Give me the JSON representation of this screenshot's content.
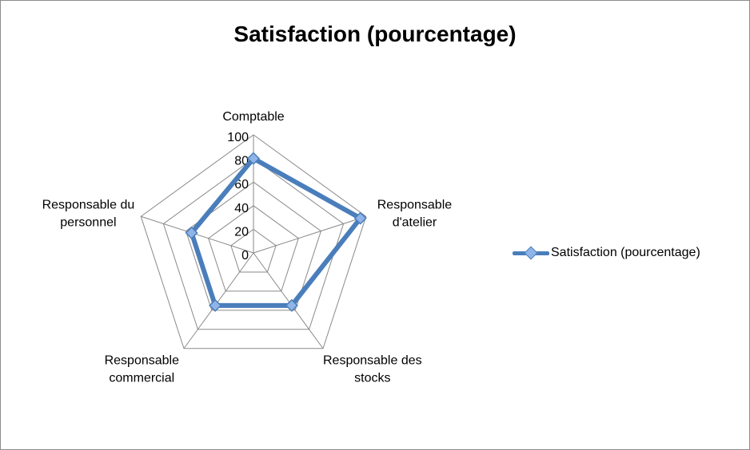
{
  "chart_data": {
    "type": "radar",
    "title": "Satisfaction (pourcentage)",
    "categories": [
      [
        "Comptable"
      ],
      [
        "Responsable",
        "d'atelier"
      ],
      [
        "Responsable des",
        "stocks"
      ],
      [
        "Responsable",
        "commercial"
      ],
      [
        "Responsable du",
        "personnel"
      ]
    ],
    "series": [
      {
        "name": "Satisfaction (pourcentage)",
        "values": [
          80,
          95,
          55,
          55,
          55
        ]
      }
    ],
    "ylim": [
      0,
      100
    ],
    "ticks": [
      "0",
      "20",
      "40",
      "60",
      "80",
      "100"
    ],
    "legend_position": "right",
    "colors": {
      "series_line": "#4a7ebb",
      "marker_fill": "#8fb4e8",
      "grid": "#8a8a8a"
    }
  }
}
